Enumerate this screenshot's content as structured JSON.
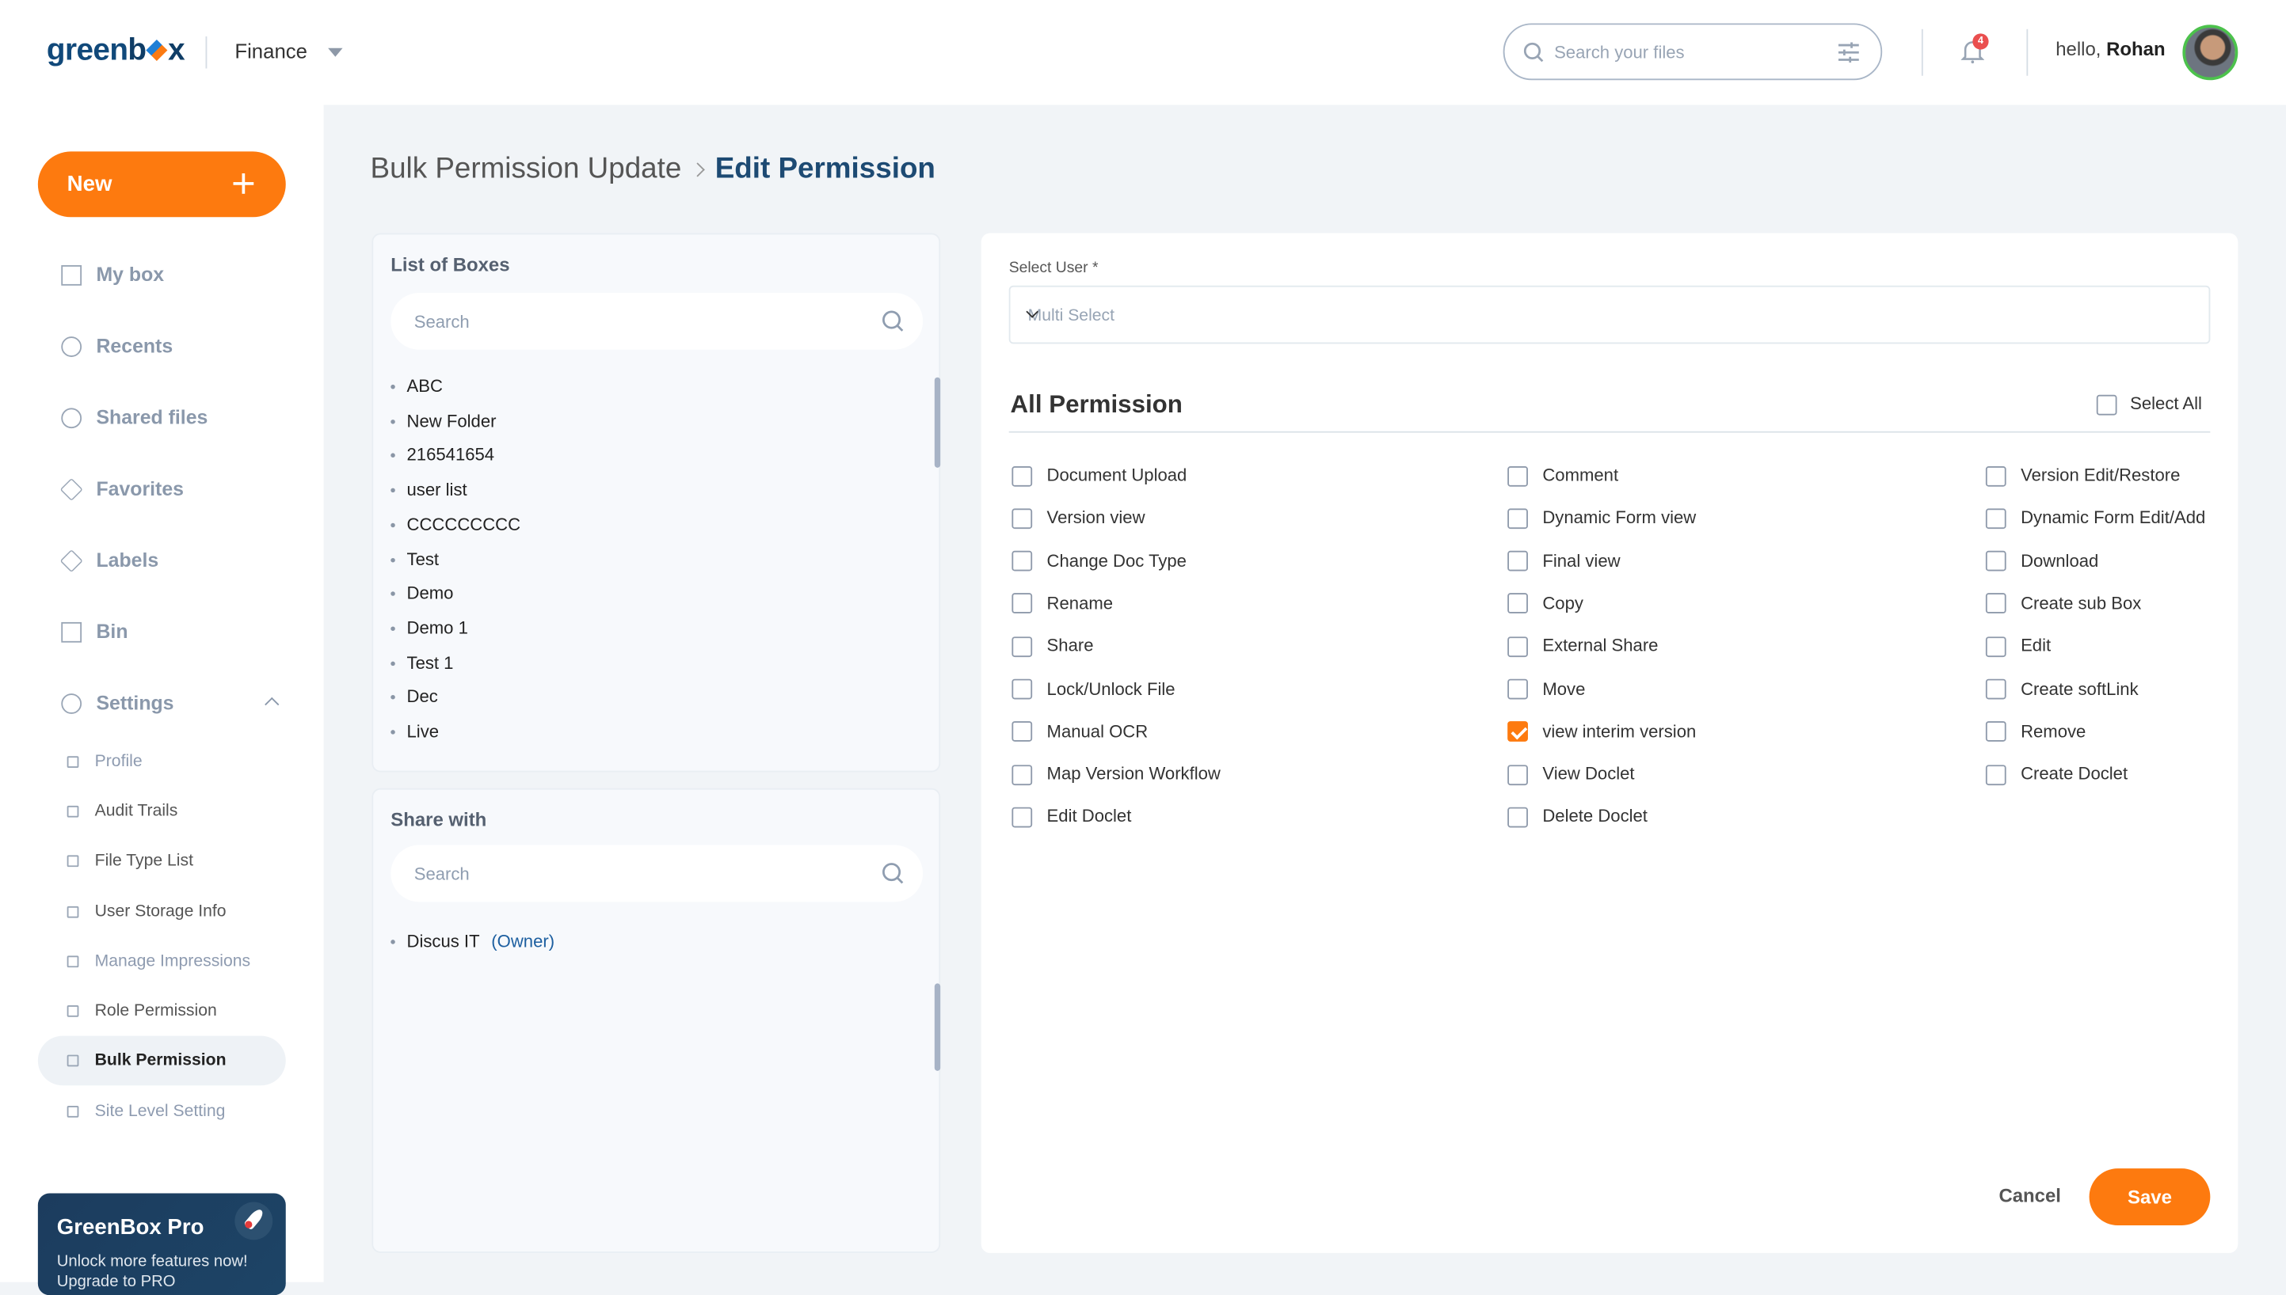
{
  "header": {
    "logo": "greenbox",
    "workspace": "Finance",
    "search_placeholder": "Search your files",
    "notification_count": "4",
    "greeting": "hello,",
    "user_name": "Rohan"
  },
  "sidebar": {
    "new_label": "New",
    "new_icon": "plus-icon",
    "items": [
      {
        "label": "My box",
        "icon": "box-icon"
      },
      {
        "label": "Recents",
        "icon": "clock-icon"
      },
      {
        "label": "Shared files",
        "icon": "share-icon"
      },
      {
        "label": "Favorites",
        "icon": "star-icon"
      },
      {
        "label": "Labels",
        "icon": "tag-icon"
      },
      {
        "label": "Bin",
        "icon": "trash-icon"
      },
      {
        "label": "Settings",
        "icon": "gear-icon"
      }
    ],
    "settings_items": [
      {
        "label": "Profile",
        "icon": "user-icon"
      },
      {
        "label": "Audit Trails",
        "icon": "clipboard-icon"
      },
      {
        "label": "File Type List",
        "icon": "file-icon"
      },
      {
        "label": "User Storage Info",
        "icon": "cloud-icon"
      },
      {
        "label": "Manage Impressions",
        "icon": "trend-icon"
      },
      {
        "label": "Role Permission",
        "icon": "list-check-icon"
      },
      {
        "label": "Bulk Permission",
        "icon": "shield-lock-icon",
        "active": true
      },
      {
        "label": "Site Level Setting",
        "icon": "chart-icon"
      }
    ],
    "pro": {
      "title": "GreenBox Pro",
      "desc": "Unlock more features now! Upgrade to PRO"
    }
  },
  "breadcrumb": {
    "parent": "Bulk Permission Update",
    "separator": ">",
    "current": "Edit Permission"
  },
  "boxes": {
    "title": "List of Boxes",
    "search_placeholder": "Search",
    "items": [
      "ABC",
      "New Folder",
      "216541654",
      "user list",
      "CCCCCCCCC",
      "Test",
      "Demo",
      "Demo 1",
      "Test 1",
      "Dec",
      "Live"
    ]
  },
  "share": {
    "title": "Share with",
    "search_placeholder": "Search",
    "items": [
      {
        "name": "Discus IT",
        "role": "(Owner)"
      }
    ]
  },
  "form": {
    "select_label": "Select User *",
    "select_placeholder": "Multi Select",
    "all_permission": "All Permission",
    "select_all": "Select All",
    "columns": [
      [
        {
          "label": "Document Upload",
          "checked": false
        },
        {
          "label": "Version view",
          "checked": false
        },
        {
          "label": "Change Doc Type",
          "checked": false
        },
        {
          "label": "Rename",
          "checked": false
        },
        {
          "label": "Share",
          "checked": false
        },
        {
          "label": "Lock/Unlock File",
          "checked": false
        },
        {
          "label": "Manual OCR",
          "checked": false
        },
        {
          "label": "Map Version Workflow",
          "checked": false
        },
        {
          "label": "Edit Doclet",
          "checked": false
        }
      ],
      [
        {
          "label": "Comment",
          "checked": false
        },
        {
          "label": "Dynamic Form view",
          "checked": false
        },
        {
          "label": "Final view",
          "checked": false
        },
        {
          "label": "Copy",
          "checked": false
        },
        {
          "label": "External Share",
          "checked": false
        },
        {
          "label": "Move",
          "checked": false
        },
        {
          "label": "view interim version",
          "checked": true
        },
        {
          "label": "View Doclet",
          "checked": false
        },
        {
          "label": "Delete Doclet",
          "checked": false
        }
      ],
      [
        {
          "label": "Version Edit/Restore",
          "checked": false
        },
        {
          "label": "Dynamic Form Edit/Add",
          "checked": false
        },
        {
          "label": "Download",
          "checked": false
        },
        {
          "label": "Create sub Box",
          "checked": false
        },
        {
          "label": "Edit",
          "checked": false
        },
        {
          "label": "Create softLink",
          "checked": false
        },
        {
          "label": "Remove",
          "checked": false
        },
        {
          "label": "Create Doclet",
          "checked": false
        }
      ]
    ],
    "cancel": "Cancel",
    "save": "Save"
  },
  "colors": {
    "accent": "#fd7a0f",
    "brand": "#11497a",
    "pro_bg": "#1c3c5e"
  }
}
